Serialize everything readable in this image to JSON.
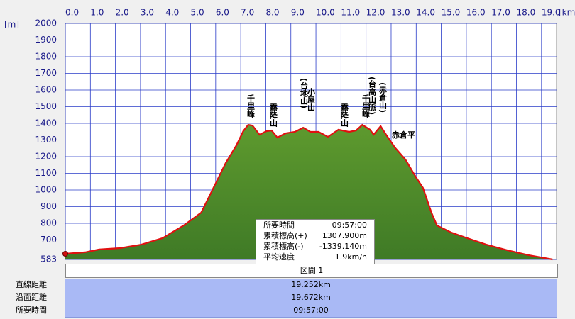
{
  "chart_data": {
    "type": "area",
    "y_label": "[m]",
    "x_label": "[km]",
    "x": [
      0,
      0.79,
      1.35,
      2.19,
      3.03,
      3.88,
      4.72,
      5.42,
      5.84,
      6.4,
      6.83,
      7.1,
      7.3,
      7.47,
      7.75,
      8.03,
      8.23,
      8.46,
      8.79,
      9.16,
      9.49,
      9.78,
      10.1,
      10.48,
      10.9,
      11.32,
      11.6,
      11.85,
      12.16,
      12.3,
      12.58,
      12.8,
      13.15,
      13.57,
      13.99,
      14.27,
      14.61,
      14.83,
      15.39,
      15.96,
      16.8,
      17.64,
      18.48,
      19.44
    ],
    "values": [
      617,
      626,
      643,
      651,
      672,
      711,
      787,
      864,
      991,
      1162,
      1268,
      1353,
      1391,
      1387,
      1332,
      1353,
      1357,
      1315,
      1340,
      1349,
      1374,
      1349,
      1349,
      1319,
      1362,
      1349,
      1357,
      1391,
      1362,
      1332,
      1383,
      1332,
      1255,
      1183,
      1077,
      1013,
      864,
      787,
      745,
      715,
      672,
      638,
      609,
      583
    ],
    "color": "#4f8a2a",
    "line_color": "#e01010",
    "grid": true,
    "grid_color": "#2a3cc8",
    "xlim": [
      0,
      19.6
    ],
    "xticks": [
      {
        "value": 0,
        "label": "0.0"
      },
      {
        "value": 1,
        "label": "1.0"
      },
      {
        "value": 2,
        "label": "2.0"
      },
      {
        "value": 3,
        "label": "3.0"
      },
      {
        "value": 4,
        "label": "4.0"
      },
      {
        "value": 5,
        "label": "5.0"
      },
      {
        "value": 6,
        "label": "6.0"
      },
      {
        "value": 7,
        "label": "7.0"
      },
      {
        "value": 8,
        "label": "8.0"
      },
      {
        "value": 9,
        "label": "9.0"
      },
      {
        "value": 10,
        "label": "10.0"
      },
      {
        "value": 11,
        "label": "11.0"
      },
      {
        "value": 12,
        "label": "12.0"
      },
      {
        "value": 13,
        "label": "13.0"
      },
      {
        "value": 14,
        "label": "14.0"
      },
      {
        "value": 15,
        "label": "15.0"
      },
      {
        "value": 16,
        "label": "16.0"
      },
      {
        "value": 17,
        "label": "17.0"
      },
      {
        "value": 18,
        "label": "18.0"
      },
      {
        "value": 19,
        "label": "19.0"
      }
    ],
    "ylim": [
      583,
      2000
    ],
    "yticks": [
      583,
      700,
      800,
      900,
      1000,
      1100,
      1200,
      1300,
      1400,
      1500,
      1600,
      1700,
      1800,
      1900,
      2000
    ],
    "annotations": [
      "千里峰",
      "霧降山",
      "(台地山)",
      "小屋山",
      "霧降山",
      "千里峰",
      "(台高山脈)",
      "(赤倉山)",
      "赤倉平"
    ]
  },
  "info_box": {
    "rows": [
      [
        "所要時間",
        "09:57:00"
      ],
      [
        "累積標高(+)",
        "1307.900m"
      ],
      [
        "累積標高(-)",
        "-1339.140m"
      ],
      [
        "平均速度",
        "1.9km/h"
      ]
    ]
  },
  "table": {
    "header": "区間 1",
    "rows": [
      [
        "直線距離",
        "19.252km"
      ],
      [
        "沿面距離",
        "19.672km"
      ],
      [
        "所要時間",
        "09:57:00"
      ]
    ]
  }
}
